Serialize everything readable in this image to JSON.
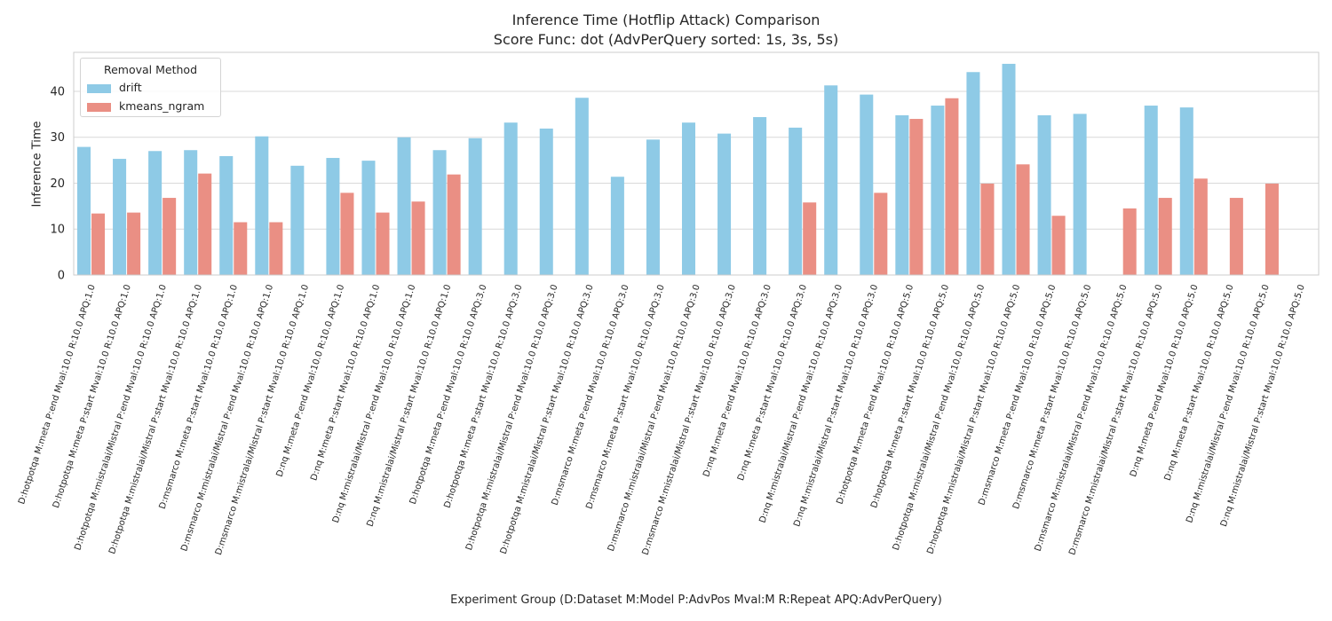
{
  "chart_data": {
    "type": "bar",
    "title": "Inference Time (Hotflip Attack) Comparison",
    "subtitle": "Score Func: dot (AdvPerQuery sorted: 1s, 3s, 5s)",
    "xlabel": "Experiment Group (D:Dataset M:Model P:AdvPos Mval:M R:Repeat APQ:AdvPerQuery)",
    "ylabel": "Inference Time",
    "ylim": [
      0,
      48.5
    ],
    "yticks": [
      0,
      10,
      20,
      30,
      40
    ],
    "grid": true,
    "legend": {
      "title": "Removal Method",
      "position": "top-left"
    },
    "categories": [
      "D:hotpotqa M:meta P:end Mval:10.0 R:10.0 APQ:1.0",
      "D:hotpotqa M:meta P:start Mval:10.0 R:10.0 APQ:1.0",
      "D:hotpotqa M:mistralai/Mistral P:end Mval:10.0 R:10.0 APQ:1.0",
      "D:hotpotqa M:mistralai/Mistral P:start Mval:10.0 R:10.0 APQ:1.0",
      "D:msmarco M:meta P:start Mval:10.0 R:10.0 APQ:1.0",
      "D:msmarco M:mistralai/Mistral P:end Mval:10.0 R:10.0 APQ:1.0",
      "D:msmarco M:mistralai/Mistral P:start Mval:10.0 R:10.0 APQ:1.0",
      "D:nq M:meta P:end Mval:10.0 R:10.0 APQ:1.0",
      "D:nq M:meta P:start Mval:10.0 R:10.0 APQ:1.0",
      "D:nq M:mistralai/Mistral P:end Mval:10.0 R:10.0 APQ:1.0",
      "D:nq M:mistralai/Mistral P:start Mval:10.0 R:10.0 APQ:1.0",
      "D:hotpotqa M:meta P:end Mval:10.0 R:10.0 APQ:3.0",
      "D:hotpotqa M:meta P:start Mval:10.0 R:10.0 APQ:3.0",
      "D:hotpotqa M:mistralai/Mistral P:end Mval:10.0 R:10.0 APQ:3.0",
      "D:hotpotqa M:mistralai/Mistral P:start Mval:10.0 R:10.0 APQ:3.0",
      "D:msmarco M:meta P:end Mval:10.0 R:10.0 APQ:3.0",
      "D:msmarco M:meta P:start Mval:10.0 R:10.0 APQ:3.0",
      "D:msmarco M:mistralai/Mistral P:end Mval:10.0 R:10.0 APQ:3.0",
      "D:msmarco M:mistralai/Mistral P:start Mval:10.0 R:10.0 APQ:3.0",
      "D:nq M:meta P:end Mval:10.0 R:10.0 APQ:3.0",
      "D:nq M:meta P:start Mval:10.0 R:10.0 APQ:3.0",
      "D:nq M:mistralai/Mistral P:end Mval:10.0 R:10.0 APQ:3.0",
      "D:nq M:mistralai/Mistral P:start Mval:10.0 R:10.0 APQ:3.0",
      "D:hotpotqa M:meta P:end Mval:10.0 R:10.0 APQ:5.0",
      "D:hotpotqa M:meta P:start Mval:10.0 R:10.0 APQ:5.0",
      "D:hotpotqa M:mistralai/Mistral P:end Mval:10.0 R:10.0 APQ:5.0",
      "D:hotpotqa M:mistralai/Mistral P:start Mval:10.0 R:10.0 APQ:5.0",
      "D:msmarco M:meta P:end Mval:10.0 R:10.0 APQ:5.0",
      "D:msmarco M:meta P:start Mval:10.0 R:10.0 APQ:5.0",
      "D:msmarco M:mistralai/Mistral P:end Mval:10.0 R:10.0 APQ:5.0",
      "D:msmarco M:mistralai/Mistral P:start Mval:10.0 R:10.0 APQ:5.0",
      "D:nq M:meta P:end Mval:10.0 R:10.0 APQ:5.0",
      "D:nq M:meta P:start Mval:10.0 R:10.0 APQ:5.0",
      "D:nq M:mistralai/Mistral P:end Mval:10.0 R:10.0 APQ:5.0",
      "D:nq M:mistralai/Mistral P:start Mval:10.0 R:10.0 APQ:5.0"
    ],
    "series": [
      {
        "name": "drift",
        "color": "#8ecae6",
        "values": [
          27.9,
          25.3,
          27.0,
          27.2,
          25.9,
          30.2,
          23.8,
          25.5,
          24.9,
          30.0,
          27.2,
          29.8,
          33.2,
          31.9,
          38.6,
          21.4,
          29.5,
          33.2,
          30.8,
          34.4,
          32.1,
          41.3,
          39.3,
          34.8,
          36.9,
          44.2,
          46.0,
          34.8,
          35.1,
          null,
          36.9,
          36.5,
          null,
          null,
          null
        ]
      },
      {
        "name": "kmeans_ngram",
        "color": "#ea8f84",
        "values": [
          13.4,
          13.6,
          16.8,
          22.1,
          11.5,
          11.5,
          null,
          17.9,
          13.6,
          16.0,
          21.9,
          null,
          null,
          null,
          null,
          null,
          null,
          null,
          null,
          null,
          15.8,
          null,
          17.9,
          34.0,
          38.5,
          19.9,
          24.1,
          12.9,
          null,
          14.5,
          16.8,
          21.0,
          16.8,
          19.9,
          null
        ]
      }
    ]
  }
}
